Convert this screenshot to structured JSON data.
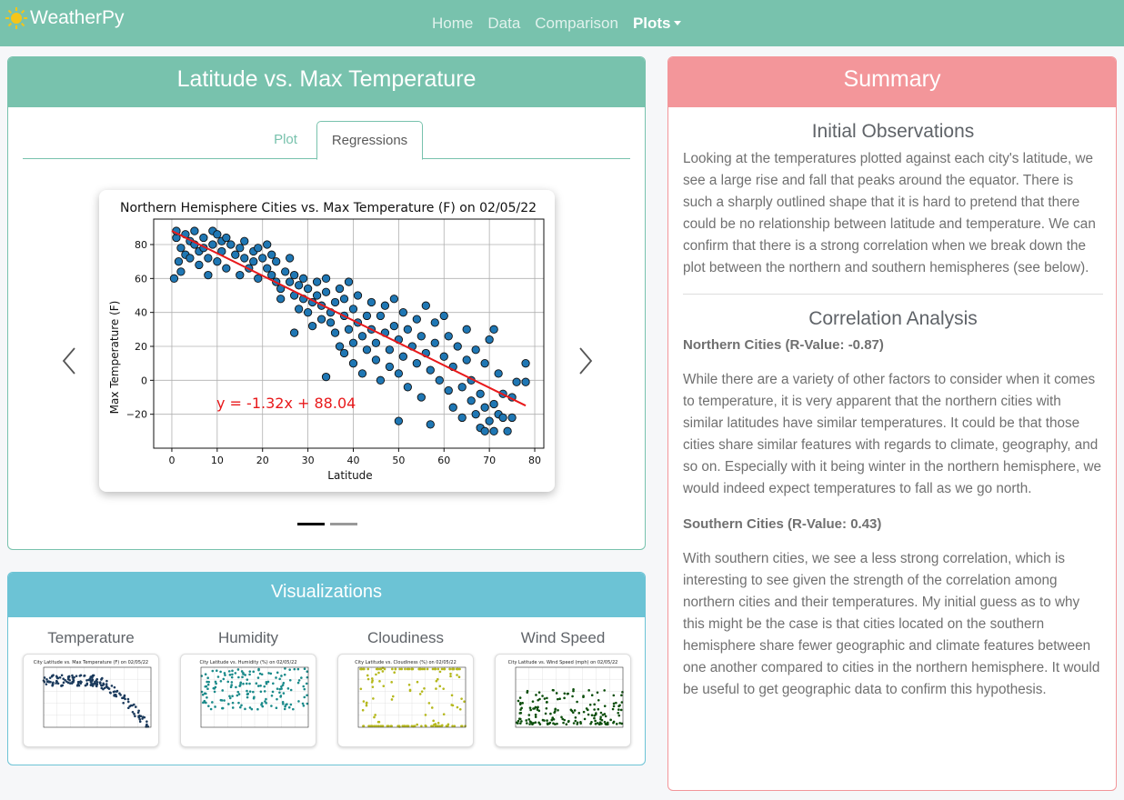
{
  "navbar": {
    "brand": "WeatherPy",
    "links": [
      "Home",
      "Data",
      "Comparison",
      "Plots"
    ]
  },
  "plot_card": {
    "title": "Latitude vs. Max Temperature",
    "tabs": [
      "Plot",
      "Regressions"
    ]
  },
  "chart_data": {
    "type": "scatter",
    "title": "Northern Hemisphere Cities vs. Max Temperature (F) on 02/05/22",
    "xlabel": "Latitude",
    "ylabel": "Max Temperature (F)",
    "xlim": [
      -4,
      82
    ],
    "ylim": [
      -40,
      95
    ],
    "xticks": [
      0,
      10,
      20,
      30,
      40,
      50,
      60,
      70,
      80
    ],
    "yticks": [
      -20,
      0,
      20,
      40,
      60,
      80
    ],
    "grid": true,
    "regression": {
      "slope": -1.32,
      "intercept": 88.04,
      "x_range": [
        0,
        78
      ],
      "color": "#e8191b"
    },
    "annotation": "y = -1.32x + 88.04",
    "point_color": "#1f77b4",
    "points": [
      [
        0.5,
        60
      ],
      [
        1,
        84
      ],
      [
        1,
        88
      ],
      [
        1.5,
        70
      ],
      [
        2,
        64
      ],
      [
        2,
        78
      ],
      [
        3,
        86
      ],
      [
        3,
        74
      ],
      [
        4,
        82
      ],
      [
        4,
        72
      ],
      [
        5,
        80
      ],
      [
        5,
        88
      ],
      [
        6,
        76
      ],
      [
        6,
        68
      ],
      [
        7,
        84
      ],
      [
        7,
        78
      ],
      [
        8,
        62
      ],
      [
        8,
        72
      ],
      [
        9,
        88
      ],
      [
        9,
        80
      ],
      [
        10,
        70
      ],
      [
        10,
        86
      ],
      [
        11,
        82
      ],
      [
        11,
        76
      ],
      [
        12,
        66
      ],
      [
        12,
        84
      ],
      [
        13,
        80
      ],
      [
        14,
        74
      ],
      [
        15,
        78
      ],
      [
        15,
        62
      ],
      [
        16,
        72
      ],
      [
        16,
        82
      ],
      [
        17,
        66
      ],
      [
        18,
        76
      ],
      [
        18,
        70
      ],
      [
        19,
        78
      ],
      [
        19,
        60
      ],
      [
        20,
        72
      ],
      [
        21,
        80
      ],
      [
        21,
        66
      ],
      [
        22,
        74
      ],
      [
        22,
        62
      ],
      [
        23,
        58
      ],
      [
        23,
        70
      ],
      [
        24,
        54
      ],
      [
        24,
        48
      ],
      [
        25,
        64
      ],
      [
        26,
        58
      ],
      [
        26,
        72
      ],
      [
        27,
        62
      ],
      [
        27,
        50
      ],
      [
        28,
        56
      ],
      [
        28,
        42
      ],
      [
        29,
        48
      ],
      [
        29,
        60
      ],
      [
        30,
        54
      ],
      [
        30,
        40
      ],
      [
        31,
        46
      ],
      [
        31,
        32
      ],
      [
        32,
        50
      ],
      [
        32,
        58
      ],
      [
        33,
        44
      ],
      [
        33,
        36
      ],
      [
        34,
        52
      ],
      [
        34,
        60
      ],
      [
        35,
        40
      ],
      [
        35,
        34
      ],
      [
        36,
        46
      ],
      [
        36,
        28
      ],
      [
        37,
        54
      ],
      [
        37,
        20
      ],
      [
        38,
        38
      ],
      [
        38,
        48
      ],
      [
        38,
        16
      ],
      [
        39,
        30
      ],
      [
        39,
        58
      ],
      [
        40,
        42
      ],
      [
        40,
        22
      ],
      [
        40,
        10
      ],
      [
        41,
        34
      ],
      [
        41,
        50
      ],
      [
        42,
        26
      ],
      [
        42,
        4
      ],
      [
        43,
        38
      ],
      [
        43,
        18
      ],
      [
        44,
        30
      ],
      [
        44,
        46
      ],
      [
        45,
        12
      ],
      [
        45,
        22
      ],
      [
        46,
        38
      ],
      [
        46,
        0
      ],
      [
        47,
        28
      ],
      [
        47,
        44
      ],
      [
        48,
        18
      ],
      [
        48,
        8
      ],
      [
        49,
        32
      ],
      [
        49,
        48
      ],
      [
        50,
        24
      ],
      [
        50,
        4
      ],
      [
        51,
        40
      ],
      [
        51,
        14
      ],
      [
        52,
        -4
      ],
      [
        52,
        30
      ],
      [
        53,
        20
      ],
      [
        54,
        36
      ],
      [
        54,
        10
      ],
      [
        55,
        26
      ],
      [
        55,
        -10
      ],
      [
        56,
        16
      ],
      [
        56,
        44
      ],
      [
        57,
        6
      ],
      [
        58,
        22
      ],
      [
        58,
        34
      ],
      [
        59,
        0
      ],
      [
        60,
        14
      ],
      [
        60,
        38
      ],
      [
        61,
        -6
      ],
      [
        61,
        26
      ],
      [
        62,
        8
      ],
      [
        62,
        -16
      ],
      [
        63,
        20
      ],
      [
        64,
        -4
      ],
      [
        64,
        -22
      ],
      [
        65,
        12
      ],
      [
        65,
        30
      ],
      [
        66,
        -12
      ],
      [
        66,
        0
      ],
      [
        67,
        -20
      ],
      [
        67,
        18
      ],
      [
        68,
        -28
      ],
      [
        68,
        -8
      ],
      [
        69,
        -16
      ],
      [
        69,
        10
      ],
      [
        70,
        -24
      ],
      [
        70,
        24
      ],
      [
        71,
        -30
      ],
      [
        71,
        -14
      ],
      [
        72,
        -20
      ],
      [
        72,
        4
      ],
      [
        73,
        -22
      ],
      [
        74,
        -30
      ],
      [
        75,
        -22
      ],
      [
        76,
        -1
      ],
      [
        78,
        10
      ],
      [
        78,
        -1
      ],
      [
        75,
        -10
      ],
      [
        73,
        -8
      ],
      [
        71,
        30
      ],
      [
        69,
        -30
      ],
      [
        57,
        -26
      ],
      [
        50,
        -24
      ],
      [
        34,
        2
      ],
      [
        27,
        28
      ]
    ]
  },
  "visualizations": {
    "title": "Visualizations",
    "items": [
      {
        "label": "Temperature",
        "chart_title": "City Latitude vs. Max Temperature (F) on 02/05/22",
        "color": "#1b3a5c"
      },
      {
        "label": "Humidity",
        "chart_title": "City Latitude vs. Humidity (%) on 02/05/22",
        "color": "#1a8a8a"
      },
      {
        "label": "Cloudiness",
        "chart_title": "City Latitude vs. Cloudiness (%) on 02/05/22",
        "color": "#b5b81c"
      },
      {
        "label": "Wind Speed",
        "chart_title": "City Latitude vs. Wind Speed (mph) on 02/05/22",
        "color": "#0b4d0b"
      }
    ]
  },
  "summary": {
    "title": "Summary",
    "initial_title": "Initial Observations",
    "initial_text": "Looking at the temperatures plotted against each city's latitude, we see a large rise and fall that peaks around the equator. There is such a sharply outlined shape that it is hard to pretend that there could be no relationship between latitude and temperature. We can confirm that there is a strong correlation when we break down the plot between the northern and southern hemispheres (see below).",
    "corr_title": "Correlation Analysis",
    "north_label": "Northern Cities (R-Value: -0.87)",
    "north_text": "While there are a variety of other factors to consider when it comes to temperature, it is very apparent that the northern cities with similar latitudes have similar temperatures. It could be that those cities share similar features with regards to climate, geography, and so on. Especially with it being winter in the northern hemisphere, we would indeed expect temperatures to fall as we go north.",
    "south_label": "Southern Cities (R-Value: 0.43)",
    "south_text": "With southern cities, we see a less strong correlation, which is interesting to see given the strength of the correlation among northern cities and their temperatures. My initial guess as to why this might be the case is that cities located on the southern hemisphere share fewer geographic and climate features between one another compared to cities in the northern hemisphere. It would be useful to get geographic data to confirm this hypothesis."
  }
}
